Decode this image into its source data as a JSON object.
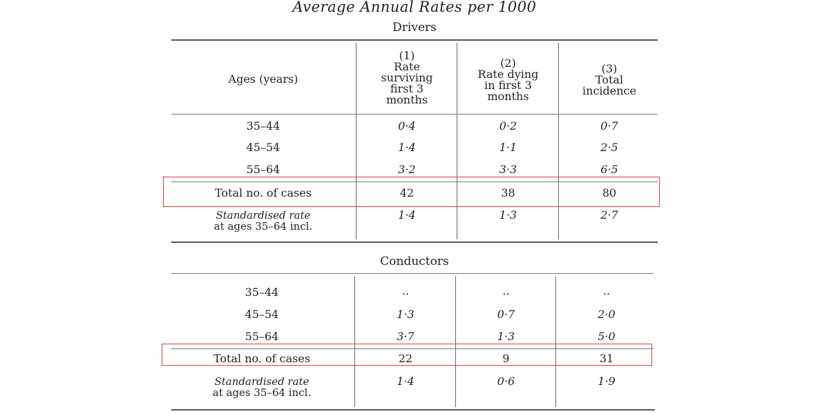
{
  "title": "Average Annual Rates per 1000",
  "headers": {
    "ages": "Ages (years)",
    "col1": [
      "(1)",
      "Rate",
      "surviving",
      "first 3",
      "months"
    ],
    "col2": [
      "(2)",
      "Rate dying",
      "in first 3",
      "months"
    ],
    "col3": [
      "(3)",
      "Total",
      "incidence"
    ]
  },
  "drivers": {
    "label": "Drivers",
    "rows": [
      {
        "age": "35–44",
        "c1": "0·4",
        "c2": "0·2",
        "c3": "0·7"
      },
      {
        "age": "45–54",
        "c1": "1·4",
        "c2": "1·1",
        "c3": "2·5"
      },
      {
        "age": "55–64",
        "c1": "3·2",
        "c2": "3·3",
        "c3": "6·5"
      }
    ],
    "total": {
      "label": "Total no. of cases",
      "c1": "42",
      "c2": "38",
      "c3": "80"
    },
    "standardised": {
      "label1": "Standardised rate",
      "label2": "at ages 35–64 incl.",
      "c1": "1·4",
      "c2": "1·3",
      "c3": "2·7"
    }
  },
  "conductors": {
    "label": "Conductors",
    "rows": [
      {
        "age": "35–44",
        "c1": "..",
        "c2": "..",
        "c3": ".."
      },
      {
        "age": "45–54",
        "c1": "1·3",
        "c2": "0·7",
        "c3": "2·0"
      },
      {
        "age": "55–64",
        "c1": "3·7",
        "c2": "1·3",
        "c3": "5·0"
      }
    ],
    "total": {
      "label": "Total no. of cases",
      "c1": "22",
      "c2": "9",
      "c3": "31"
    },
    "standardised": {
      "label1": "Standardised rate",
      "label2": "at ages 35–64 incl.",
      "c1": "1·4",
      "c2": "0·6",
      "c3": "1·9"
    }
  },
  "highlight_color": "#e03a3a"
}
